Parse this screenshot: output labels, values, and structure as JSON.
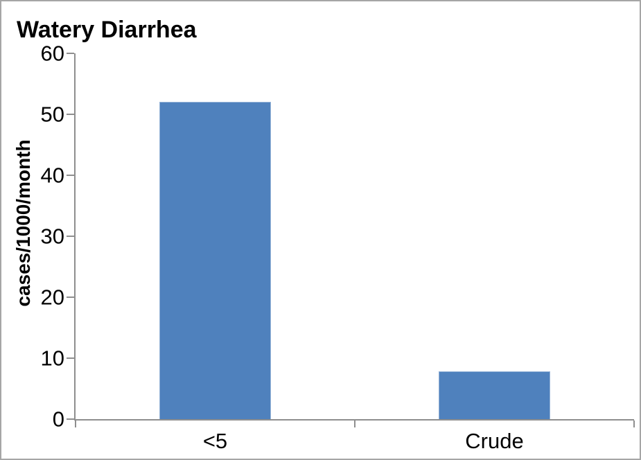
{
  "title": "Watery Diarrhea",
  "colors": {
    "bar_fill": "#4F81BD",
    "bar_border": "#95B3D7",
    "axis_line": "#8E8E8E",
    "frame_border": "#A6A6A6",
    "text": "#000000",
    "background": "#FFFFFF"
  },
  "chart_data": {
    "type": "bar",
    "title": "Watery Diarrhea",
    "categories": [
      "<5",
      "Crude"
    ],
    "values": [
      52,
      7.8
    ],
    "xlabel": "",
    "ylabel": "cases/1000/month",
    "ylim": [
      0,
      60
    ],
    "yticks": [
      0,
      10,
      20,
      30,
      40,
      50,
      60
    ],
    "grid": false,
    "legend": false,
    "bar_color": "#4F81BD"
  }
}
